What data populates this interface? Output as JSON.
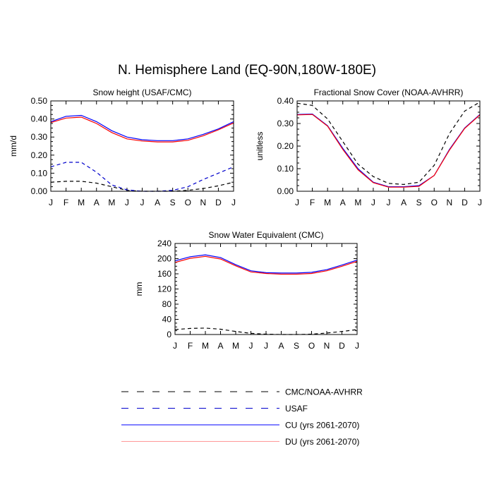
{
  "title": "N. Hemisphere Land (EQ-90N,180W-180E)",
  "colors": {
    "obs": "#000000",
    "usaf": "#0000cc",
    "cu": "#0000ff",
    "du": "#ff0000",
    "du_legend": "#ff9999"
  },
  "legend": [
    {
      "label": "CMC/NOAA-AVHRR",
      "key": "obs",
      "style": "dashed"
    },
    {
      "label": "USAF",
      "key": "usaf",
      "style": "dashed"
    },
    {
      "label": "CU (yrs 2061-2070)",
      "key": "cu",
      "style": "solid"
    },
    {
      "label": "DU (yrs 2061-2070)",
      "key": "du_legend",
      "style": "solid"
    }
  ],
  "chart_data": [
    {
      "type": "line",
      "title": "Snow height (USAF/CMC)",
      "xlabel": "",
      "ylabel": "mm/d",
      "categories": [
        "J",
        "F",
        "M",
        "A",
        "M",
        "J",
        "J",
        "A",
        "S",
        "O",
        "N",
        "D",
        "J"
      ],
      "ylim": [
        0,
        0.5
      ],
      "yticks": [
        "0.00",
        "0.10",
        "0.20",
        "0.30",
        "0.40",
        "0.50"
      ],
      "series": [
        {
          "name": "CMC/NOAA-AVHRR",
          "key": "obs",
          "style": "dashed",
          "values": [
            0.05,
            0.055,
            0.055,
            0.045,
            0.025,
            0.005,
            0.0,
            0.0,
            0.0,
            0.005,
            0.015,
            0.03,
            0.05
          ]
        },
        {
          "name": "USAF",
          "key": "usaf",
          "style": "dashed",
          "values": [
            0.135,
            0.16,
            0.16,
            0.105,
            0.035,
            0.008,
            0.0,
            0.0,
            0.005,
            0.025,
            0.065,
            0.1,
            0.135
          ]
        },
        {
          "name": "CU (yrs 2061-2070)",
          "key": "cu",
          "style": "solid",
          "values": [
            0.385,
            0.415,
            0.42,
            0.385,
            0.335,
            0.3,
            0.285,
            0.28,
            0.28,
            0.29,
            0.315,
            0.345,
            0.385
          ]
        },
        {
          "name": "DU (yrs 2061-2070)",
          "key": "du",
          "style": "solid",
          "values": [
            0.38,
            0.405,
            0.41,
            0.375,
            0.325,
            0.29,
            0.278,
            0.273,
            0.273,
            0.282,
            0.307,
            0.34,
            0.378
          ]
        }
      ]
    },
    {
      "type": "line",
      "title": "Fractional Snow Cover (NOAA-AVHRR)",
      "xlabel": "",
      "ylabel": "unitless",
      "categories": [
        "J",
        "F",
        "M",
        "A",
        "M",
        "J",
        "J",
        "A",
        "S",
        "O",
        "N",
        "D",
        "J"
      ],
      "ylim": [
        0,
        0.4
      ],
      "yticks": [
        "0.00",
        "0.10",
        "0.20",
        "0.30",
        "0.40"
      ],
      "series": [
        {
          "name": "CMC/NOAA-AVHRR",
          "key": "obs",
          "style": "dashed",
          "values": [
            0.39,
            0.38,
            0.32,
            0.22,
            0.12,
            0.065,
            0.035,
            0.03,
            0.04,
            0.115,
            0.255,
            0.355,
            0.395
          ]
        },
        {
          "name": "CU (yrs 2061-2070)",
          "key": "cu",
          "style": "solid",
          "values": [
            0.34,
            0.342,
            0.29,
            0.19,
            0.1,
            0.04,
            0.02,
            0.02,
            0.025,
            0.07,
            0.185,
            0.28,
            0.34
          ]
        },
        {
          "name": "DU (yrs 2061-2070)",
          "key": "du",
          "style": "solid",
          "values": [
            0.338,
            0.34,
            0.288,
            0.185,
            0.095,
            0.038,
            0.018,
            0.018,
            0.022,
            0.07,
            0.182,
            0.278,
            0.338
          ]
        }
      ]
    },
    {
      "type": "line",
      "title": "Snow Water Equivalent (CMC)",
      "xlabel": "",
      "ylabel": "mm",
      "categories": [
        "J",
        "F",
        "M",
        "A",
        "M",
        "J",
        "J",
        "A",
        "S",
        "O",
        "N",
        "D",
        "J"
      ],
      "ylim": [
        0,
        240
      ],
      "yticks": [
        "0",
        "40",
        "80",
        "120",
        "160",
        "200",
        "240"
      ],
      "series": [
        {
          "name": "CMC/NOAA-AVHRR",
          "key": "obs",
          "style": "dashed",
          "values": [
            13,
            16,
            17,
            14,
            8,
            3,
            1,
            0,
            0,
            1,
            4,
            8,
            13
          ]
        },
        {
          "name": "CU (yrs 2061-2070)",
          "key": "cu",
          "style": "solid",
          "values": [
            194,
            205,
            210,
            203,
            184,
            168,
            163,
            162,
            162,
            164,
            171,
            183,
            196
          ]
        },
        {
          "name": "DU (yrs 2061-2070)",
          "key": "du",
          "style": "solid",
          "values": [
            190,
            201,
            206,
            199,
            181,
            165,
            161,
            159,
            159,
            161,
            168,
            180,
            193
          ]
        }
      ]
    }
  ]
}
